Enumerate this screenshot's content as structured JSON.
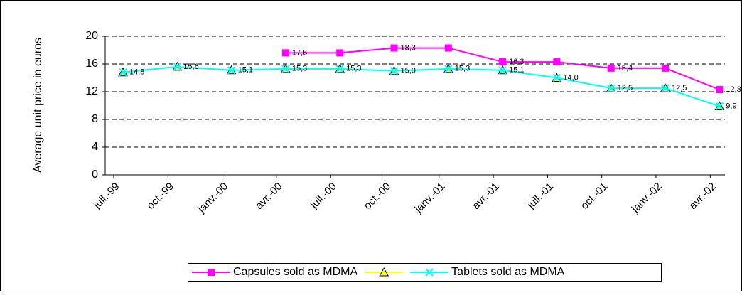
{
  "chart_data": {
    "type": "line",
    "y_label": "Average unit price in euros",
    "categories": [
      "juil.-99",
      "oct.-99",
      "janv.-00",
      "avr.-00",
      "juil.-00",
      "oct.-00",
      "janv.-01",
      "avr.-01",
      "juil.-01",
      "oct.-01",
      "janv.-02",
      "avr.-02"
    ],
    "series": [
      {
        "name": "Capsules sold as MDMA",
        "color": "#ff00ff",
        "marker": "square",
        "values": [
          null,
          null,
          null,
          17.6,
          17.6,
          18.3,
          18.3,
          16.3,
          16.3,
          15.4,
          15.4,
          12.3
        ],
        "value_labels": [
          null,
          null,
          null,
          "17,6",
          null,
          "18,3",
          null,
          "16,3",
          null,
          "15,4",
          null,
          "12,3"
        ]
      },
      {
        "name": null,
        "color": "#ffff00",
        "marker": "triangle",
        "values": [
          14.8,
          15.6,
          15.1,
          15.3,
          15.3,
          15.0,
          15.3,
          15.1,
          14.0,
          12.5,
          12.5,
          9.9
        ]
      },
      {
        "name": "Tablets sold as MDMA",
        "color": "#00ffff",
        "marker": "x",
        "values": [
          14.8,
          15.6,
          15.1,
          15.3,
          15.3,
          15.0,
          15.3,
          15.1,
          14.0,
          12.5,
          12.5,
          9.9
        ],
        "value_labels": [
          "14,8",
          "15,6",
          "15,1",
          "15,3",
          "15,3",
          "15,0",
          "15,3",
          "15,1",
          "14,0",
          "12,5",
          "12,5",
          "9,9"
        ]
      }
    ],
    "ylim": [
      0,
      20
    ],
    "yticks": [
      0,
      4,
      8,
      12,
      16,
      20
    ],
    "grid": true
  }
}
